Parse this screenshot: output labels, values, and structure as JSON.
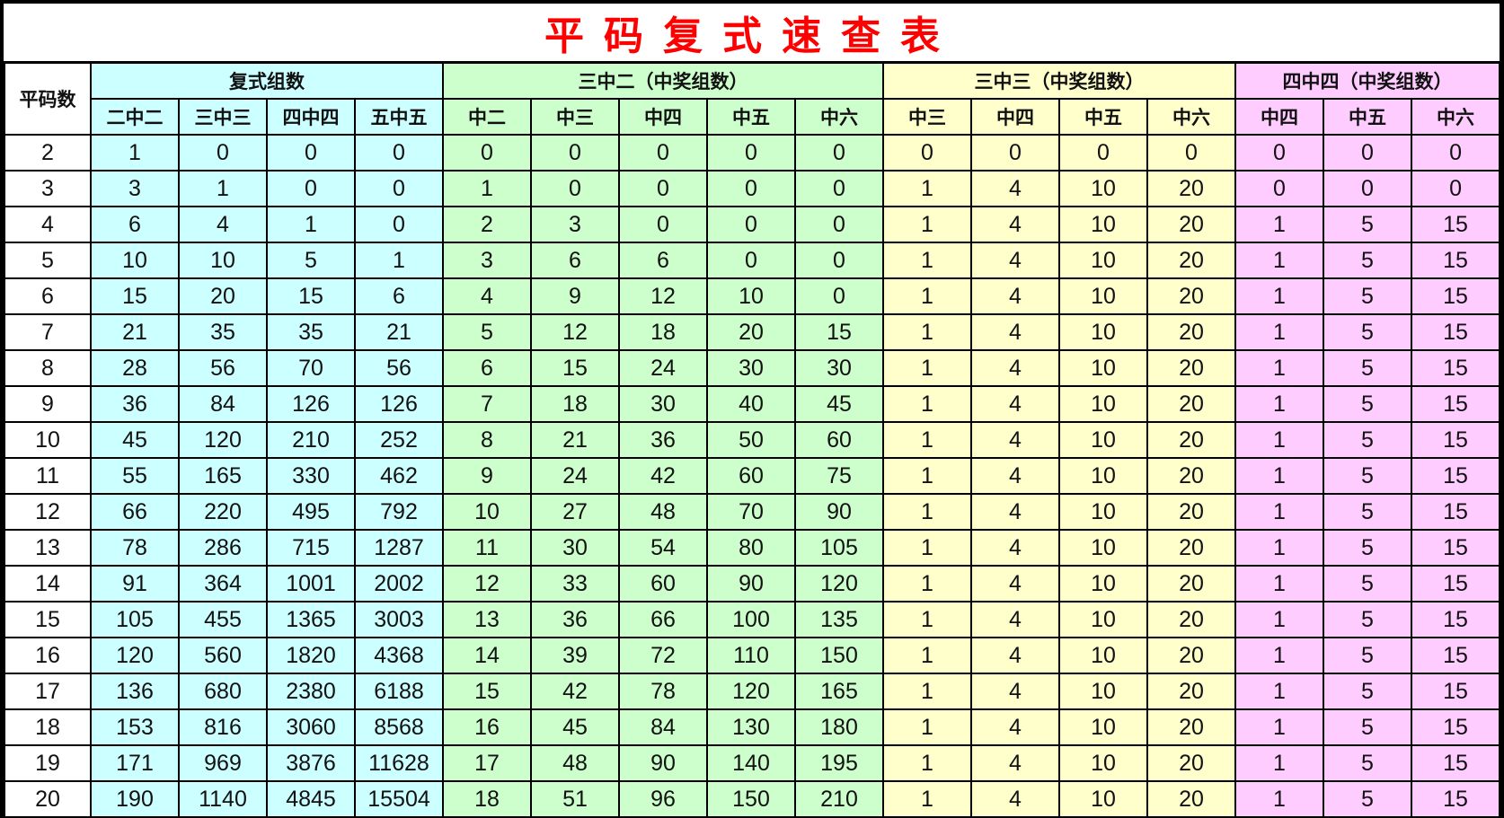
{
  "title": "平码复式速查表",
  "colors": {
    "title": "#ff0000",
    "group1": "#ccffff",
    "group2": "#ccffcc",
    "group3": "#ffffcc",
    "group4": "#ffccff"
  },
  "row_header": "平码数",
  "groups": [
    {
      "label": "复式组数",
      "columns": [
        "二中二",
        "三中三",
        "四中四",
        "五中五"
      ]
    },
    {
      "label": "三中二（中奖组数）",
      "columns": [
        "中二",
        "中三",
        "中四",
        "中五",
        "中六"
      ]
    },
    {
      "label": "三中三（中奖组数）",
      "columns": [
        "中三",
        "中四",
        "中五",
        "中六"
      ]
    },
    {
      "label": "四中四（中奖组数）",
      "columns": [
        "中四",
        "中五",
        "中六"
      ]
    }
  ],
  "rows": [
    [
      "2",
      "1",
      "0",
      "0",
      "0",
      "0",
      "0",
      "0",
      "0",
      "0",
      "0",
      "0",
      "0",
      "0",
      "0",
      "0",
      "0"
    ],
    [
      "3",
      "3",
      "1",
      "0",
      "0",
      "1",
      "0",
      "0",
      "0",
      "0",
      "1",
      "4",
      "10",
      "20",
      "0",
      "0",
      "0"
    ],
    [
      "4",
      "6",
      "4",
      "1",
      "0",
      "2",
      "3",
      "0",
      "0",
      "0",
      "1",
      "4",
      "10",
      "20",
      "1",
      "5",
      "15"
    ],
    [
      "5",
      "10",
      "10",
      "5",
      "1",
      "3",
      "6",
      "6",
      "0",
      "0",
      "1",
      "4",
      "10",
      "20",
      "1",
      "5",
      "15"
    ],
    [
      "6",
      "15",
      "20",
      "15",
      "6",
      "4",
      "9",
      "12",
      "10",
      "0",
      "1",
      "4",
      "10",
      "20",
      "1",
      "5",
      "15"
    ],
    [
      "7",
      "21",
      "35",
      "35",
      "21",
      "5",
      "12",
      "18",
      "20",
      "15",
      "1",
      "4",
      "10",
      "20",
      "1",
      "5",
      "15"
    ],
    [
      "8",
      "28",
      "56",
      "70",
      "56",
      "6",
      "15",
      "24",
      "30",
      "30",
      "1",
      "4",
      "10",
      "20",
      "1",
      "5",
      "15"
    ],
    [
      "9",
      "36",
      "84",
      "126",
      "126",
      "7",
      "18",
      "30",
      "40",
      "45",
      "1",
      "4",
      "10",
      "20",
      "1",
      "5",
      "15"
    ],
    [
      "10",
      "45",
      "120",
      "210",
      "252",
      "8",
      "21",
      "36",
      "50",
      "60",
      "1",
      "4",
      "10",
      "20",
      "1",
      "5",
      "15"
    ],
    [
      "11",
      "55",
      "165",
      "330",
      "462",
      "9",
      "24",
      "42",
      "60",
      "75",
      "1",
      "4",
      "10",
      "20",
      "1",
      "5",
      "15"
    ],
    [
      "12",
      "66",
      "220",
      "495",
      "792",
      "10",
      "27",
      "48",
      "70",
      "90",
      "1",
      "4",
      "10",
      "20",
      "1",
      "5",
      "15"
    ],
    [
      "13",
      "78",
      "286",
      "715",
      "1287",
      "11",
      "30",
      "54",
      "80",
      "105",
      "1",
      "4",
      "10",
      "20",
      "1",
      "5",
      "15"
    ],
    [
      "14",
      "91",
      "364",
      "1001",
      "2002",
      "12",
      "33",
      "60",
      "90",
      "120",
      "1",
      "4",
      "10",
      "20",
      "1",
      "5",
      "15"
    ],
    [
      "15",
      "105",
      "455",
      "1365",
      "3003",
      "13",
      "36",
      "66",
      "100",
      "135",
      "1",
      "4",
      "10",
      "20",
      "1",
      "5",
      "15"
    ],
    [
      "16",
      "120",
      "560",
      "1820",
      "4368",
      "14",
      "39",
      "72",
      "110",
      "150",
      "1",
      "4",
      "10",
      "20",
      "1",
      "5",
      "15"
    ],
    [
      "17",
      "136",
      "680",
      "2380",
      "6188",
      "15",
      "42",
      "78",
      "120",
      "165",
      "1",
      "4",
      "10",
      "20",
      "1",
      "5",
      "15"
    ],
    [
      "18",
      "153",
      "816",
      "3060",
      "8568",
      "16",
      "45",
      "84",
      "130",
      "180",
      "1",
      "4",
      "10",
      "20",
      "1",
      "5",
      "15"
    ],
    [
      "19",
      "171",
      "969",
      "3876",
      "11628",
      "17",
      "48",
      "90",
      "140",
      "195",
      "1",
      "4",
      "10",
      "20",
      "1",
      "5",
      "15"
    ],
    [
      "20",
      "190",
      "1140",
      "4845",
      "15504",
      "18",
      "51",
      "96",
      "150",
      "210",
      "1",
      "4",
      "10",
      "20",
      "1",
      "5",
      "15"
    ]
  ]
}
